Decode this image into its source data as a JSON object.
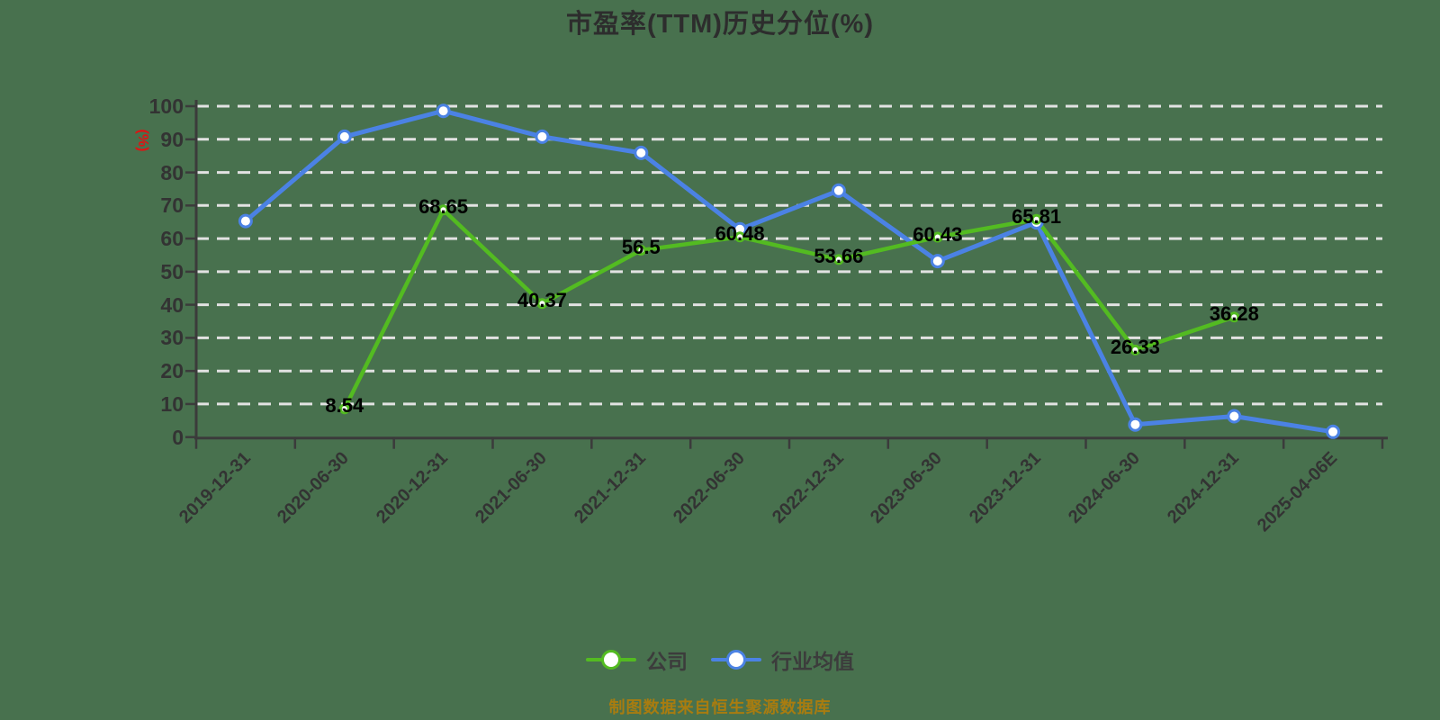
{
  "title": "市盈率(TTM)历史分位(%)",
  "y_axis": {
    "unit_label": "(%)",
    "unit_color": "#e01212"
  },
  "footer": {
    "text": "制图数据来自恒生聚源数据库",
    "color": "#a87c10"
  },
  "legend": {
    "items": [
      {
        "name": "公司",
        "color": "#53bb21"
      },
      {
        "name": "行业均值",
        "color": "#4b82e4"
      }
    ]
  },
  "background_color": "#48714e",
  "chart_data": {
    "type": "line",
    "title": "市盈率(TTM)历史分位(%)",
    "xlabel": "",
    "ylabel": "(%)",
    "ylim": [
      0,
      100
    ],
    "ytick_step": 10,
    "grid": "horizontal-dashed",
    "grid_color": "#e2e2e2",
    "axis_color": "#3b3b3b",
    "legend_position": "bottom",
    "categories": [
      "2019-12-31",
      "2020-06-30",
      "2020-12-31",
      "2021-06-30",
      "2021-12-31",
      "2022-06-30",
      "2022-12-31",
      "2023-06-30",
      "2023-12-31",
      "2024-06-30",
      "2024-12-31",
      "2025-04-06E"
    ],
    "series": [
      {
        "name": "行业均值",
        "color": "#4b82e4",
        "line_width": 5,
        "point_radius": 6.5,
        "show_point_labels": false,
        "values": [
          65.3,
          90.8,
          98.6,
          90.8,
          85.9,
          62.8,
          74.5,
          53.2,
          64.9,
          3.8,
          6.3,
          1.6
        ],
        "point_labels": null
      },
      {
        "name": "公司",
        "color": "#53bb21",
        "line_width": 4.5,
        "point_radius": 4.5,
        "show_point_labels": true,
        "values": [
          null,
          8.54,
          68.65,
          40.37,
          56.5,
          60.48,
          53.66,
          60.43,
          65.81,
          26.33,
          36.28,
          null
        ],
        "point_labels": [
          null,
          "8.54",
          "68.65",
          "40.37",
          "56.5",
          "60.48",
          "53.66",
          "60.43",
          "65.81",
          "26.33",
          "36.28",
          null
        ]
      }
    ]
  }
}
